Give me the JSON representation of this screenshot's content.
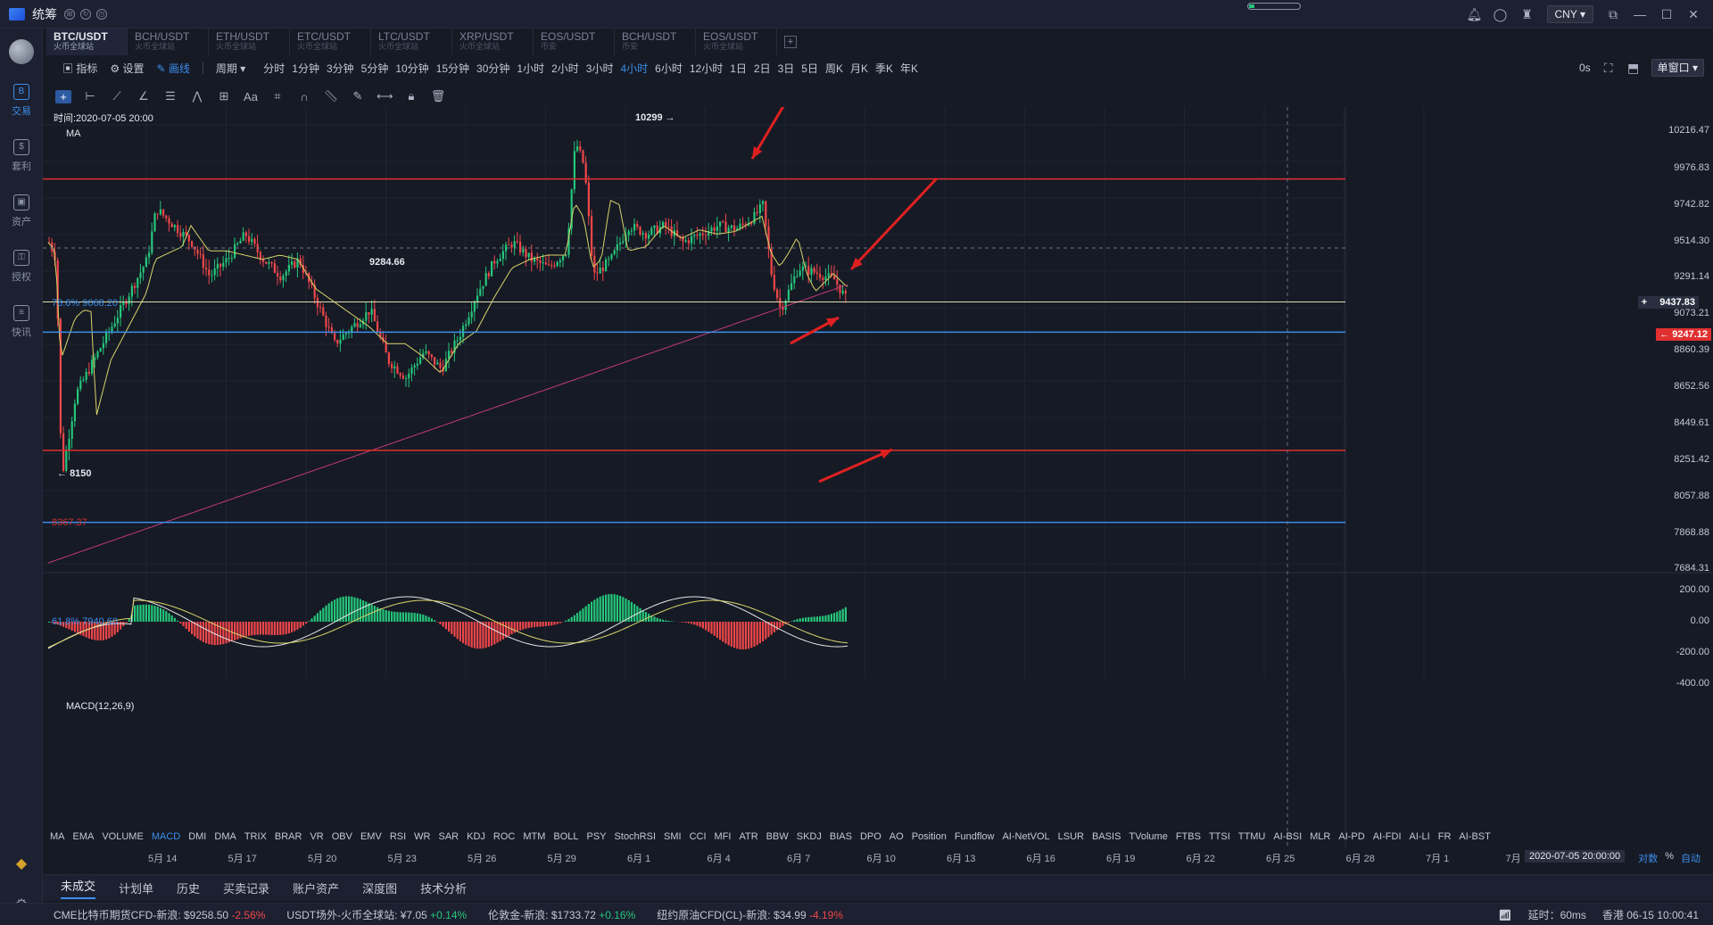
{
  "app": {
    "name": "统筹",
    "currency": "CNY"
  },
  "sidebar": [
    {
      "label": "交易",
      "icon": "B",
      "active": true
    },
    {
      "label": "套利",
      "icon": "$"
    },
    {
      "label": "资产",
      "icon": "▣"
    },
    {
      "label": "授权",
      "icon": "⚿"
    },
    {
      "label": "快讯",
      "icon": "≡"
    }
  ],
  "tabs": [
    {
      "symbol": "BTC/USDT",
      "exchange": "火币全球站",
      "active": true
    },
    {
      "symbol": "BCH/USDT",
      "exchange": "火币全球站"
    },
    {
      "symbol": "ETH/USDT",
      "exchange": "火币全球站"
    },
    {
      "symbol": "ETC/USDT",
      "exchange": "火币全球站"
    },
    {
      "symbol": "LTC/USDT",
      "exchange": "火币全球站"
    },
    {
      "symbol": "XRP/USDT",
      "exchange": "火币全球站"
    },
    {
      "symbol": "EOS/USDT",
      "exchange": "币安"
    },
    {
      "symbol": "BCH/USDT",
      "exchange": "币安"
    },
    {
      "symbol": "EOS/USDT",
      "exchange": "火币全球站"
    }
  ],
  "toolbar": {
    "indicators": "指标",
    "settings": "设置",
    "draw": "画线",
    "period": "周期",
    "periods": [
      "分时",
      "1分钟",
      "3分钟",
      "5分钟",
      "10分钟",
      "15分钟",
      "30分钟",
      "1小时",
      "2小时",
      "3小时",
      "4小时",
      "6小时",
      "12小时",
      "1日",
      "2日",
      "3日",
      "5日",
      "周K",
      "月K",
      "季K",
      "年K"
    ],
    "active_period": "4小时",
    "right_time": "0s",
    "window_mode": "单窗口"
  },
  "chart": {
    "time_label": "时间:2020-07-05 20:00",
    "ma_label": "MA",
    "macd_label": "MACD(12,26,9)",
    "peak_high": "10299",
    "peak_low": "8150",
    "mid_label": "9284.66",
    "fib_786": "78.6% 9068.20",
    "fib_618": "61.8% 7940.60",
    "red_low_label": "8367.37",
    "price_ticks": [
      "10216.47",
      "9976.83",
      "9742.82",
      "9514.30",
      "9291.14",
      "9073.21",
      "8860.39",
      "8652.56",
      "8449.61",
      "8251.42",
      "8057.88",
      "7868.88",
      "7684.31"
    ],
    "macd_ticks": [
      "200.00",
      "0.00",
      "-200.00",
      "-400.00"
    ],
    "crosshair_price": "9437.83",
    "current_price": "9247.12",
    "crosshair_time": "2020-07-05 20:00:00",
    "dates": [
      "5月 14",
      "5月 17",
      "5月 20",
      "5月 23",
      "5月 26",
      "5月 29",
      "6月 1",
      "6月 4",
      "6月 7",
      "6月 10",
      "6月 13",
      "6月 16",
      "6月 19",
      "6月 22",
      "6月 25",
      "6月 28",
      "7月 1",
      "7月"
    ],
    "indicators": [
      "MA",
      "EMA",
      "VOLUME",
      "MACD",
      "DMI",
      "DMA",
      "TRIX",
      "BRAR",
      "VR",
      "OBV",
      "EMV",
      "RSI",
      "WR",
      "SAR",
      "KDJ",
      "ROC",
      "MTM",
      "BOLL",
      "PSY",
      "StochRSI",
      "SMI",
      "CCI",
      "MFI",
      "ATR",
      "BBW",
      "SKDJ",
      "BIAS",
      "DPO",
      "AO",
      "Position",
      "Fundflow",
      "AI-NetVOL",
      "LSUR",
      "BASIS",
      "TVolume",
      "FTBS",
      "TTSI",
      "TTMU",
      "AI-BSI",
      "MLR",
      "AI-PD",
      "AI-FDI",
      "AI-LI",
      "FR",
      "AI-BST"
    ],
    "active_indicator": "MACD",
    "log_label": "对数",
    "pct_label": "%",
    "auto_label": "自动"
  },
  "bottom_tabs": [
    "未成交",
    "计划单",
    "历史",
    "买卖记录",
    "账户资产",
    "深度图",
    "技术分析"
  ],
  "ticker": [
    {
      "name": "CME比特币期货CFD-新浪:",
      "price": "$9258.50",
      "change": "-2.56%",
      "dir": "dn"
    },
    {
      "name": "USDT场外-火币全球站:",
      "price": "¥7.05",
      "change": "+0.14%",
      "dir": "up"
    },
    {
      "name": "伦敦金-新浪:",
      "price": "$1733.72",
      "change": "+0.16%",
      "dir": "up"
    },
    {
      "name": "纽约原油CFD(CL)-新浪:",
      "price": "$34.99",
      "change": "-4.19%",
      "dir": "dn"
    }
  ],
  "status": {
    "latency": "延时：60ms",
    "clock": "香港 06-15 10:00:41"
  },
  "colors": {
    "up": "#25c67a",
    "down": "#f0474a",
    "accent": "#3b8eea",
    "bg": "#161a25"
  },
  "chart_data": {
    "type": "candlestick",
    "title": "BTC/USDT 4小时",
    "ylim": [
      7600,
      10350
    ],
    "horizontal_lines": [
      {
        "label": "resistance",
        "value": 9976.83,
        "color": "#e03030"
      },
      {
        "label": "support",
        "value": 8367.37,
        "color": "#e03030"
      },
      {
        "label": "fib 78.6%",
        "value": 9068.2,
        "color": "#3b8eea"
      },
      {
        "label": "fib 61.8%",
        "value": 7940.6,
        "color": "#3b8eea"
      },
      {
        "label": "current",
        "value": 9247.12,
        "color": "#e0e0b0"
      }
    ],
    "key_points": [
      {
        "label": "high",
        "date": "6月 1",
        "value": 10299
      },
      {
        "label": "low",
        "date": "5月 11",
        "value": 8150
      },
      {
        "label": "mid",
        "date": "5月 21",
        "value": 9284.66
      }
    ]
  }
}
